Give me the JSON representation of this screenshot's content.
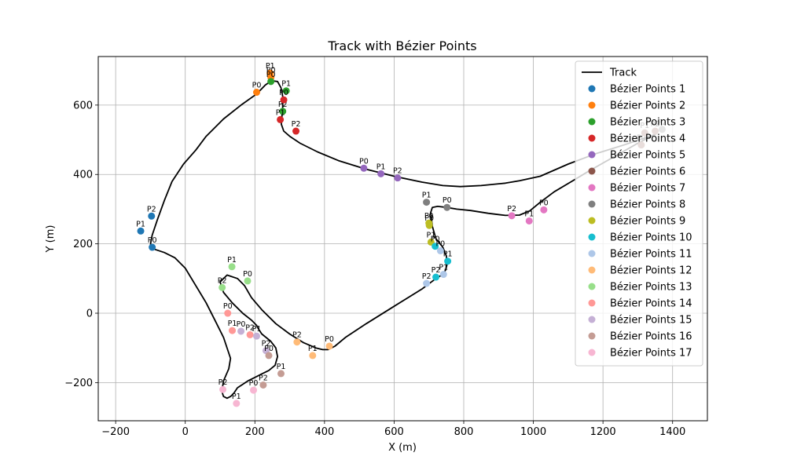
{
  "chart_data": {
    "type": "scatter",
    "title": "Track with Bézier Points",
    "xlabel": "X (m)",
    "ylabel": "Y (m)",
    "xlim": [
      -250,
      1500
    ],
    "ylim": [
      -310,
      740
    ],
    "xticks": [
      -200,
      0,
      200,
      400,
      600,
      800,
      1000,
      1200,
      1400
    ],
    "yticks": [
      -200,
      0,
      200,
      400,
      600
    ],
    "grid": true,
    "legend_position": "top-right",
    "track": {
      "name": "Track",
      "color": "#000000",
      "x": [
        -95,
        -80,
        -60,
        -38,
        -5,
        30,
        60,
        110,
        160,
        205,
        230,
        248,
        265,
        275,
        280,
        280,
        278,
        276,
        283,
        300,
        330,
        380,
        440,
        520,
        600,
        680,
        740,
        790,
        850,
        920,
        960,
        1020,
        1100,
        1180,
        1260,
        1310,
        1340,
        1350,
        1340,
        1300,
        1230,
        1160,
        1110,
        1060,
        1020,
        990,
        960,
        920,
        870,
        820,
        780,
        750,
        725,
        710,
        705,
        710,
        720,
        740,
        750,
        752,
        748,
        740,
        720,
        680,
        600,
        520,
        460,
        430,
        410,
        395,
        375,
        340,
        300,
        260,
        220,
        190,
        170,
        150,
        120,
        100,
        110,
        135,
        165,
        190,
        205,
        210,
        220,
        245,
        260,
        265,
        258,
        240,
        220,
        200,
        180,
        165,
        150,
        140,
        130,
        120,
        110,
        105,
        110,
        125,
        130,
        110,
        85,
        60,
        30,
        0,
        -30,
        -60,
        -90,
        -100,
        -99,
        -95
      ],
      "y": [
        225,
        270,
        325,
        380,
        430,
        470,
        510,
        560,
        600,
        632,
        658,
        670,
        668,
        650,
        625,
        595,
        570,
        545,
        525,
        510,
        490,
        465,
        440,
        415,
        395,
        378,
        368,
        365,
        368,
        375,
        382,
        395,
        430,
        460,
        485,
        502,
        512,
        515,
        510,
        490,
        450,
        410,
        380,
        350,
        320,
        295,
        283,
        282,
        288,
        296,
        300,
        305,
        308,
        305,
        290,
        250,
        215,
        190,
        165,
        140,
        125,
        112,
        100,
        70,
        20,
        -30,
        -70,
        -95,
        -105,
        -105,
        -100,
        -85,
        -60,
        -30,
        10,
        45,
        80,
        100,
        110,
        90,
        60,
        30,
        0,
        -20,
        -35,
        -45,
        -60,
        -80,
        -100,
        -125,
        -150,
        -165,
        -175,
        -185,
        -195,
        -205,
        -215,
        -230,
        -240,
        -245,
        -240,
        -225,
        -195,
        -160,
        -130,
        -70,
        -20,
        30,
        80,
        130,
        160,
        175,
        185,
        195,
        205,
        225
      ]
    },
    "series": [
      {
        "name": "Bézier Points 1",
        "color": "#1f77b4",
        "points": [
          {
            "label": "P0",
            "x": -95,
            "y": 190
          },
          {
            "label": "P1",
            "x": -128,
            "y": 237
          },
          {
            "label": "P2",
            "x": -97,
            "y": 280
          }
        ]
      },
      {
        "name": "Bézier Points 2",
        "color": "#ff7f0e",
        "points": [
          {
            "label": "P0",
            "x": 205,
            "y": 637
          },
          {
            "label": "P1",
            "x": 244,
            "y": 692
          },
          {
            "label": "P0",
            "x": 246,
            "y": 680
          }
        ]
      },
      {
        "name": "Bézier Points 3",
        "color": "#2ca02c",
        "points": [
          {
            "label": "P0",
            "x": 246,
            "y": 668
          },
          {
            "label": "P1",
            "x": 290,
            "y": 641
          },
          {
            "label": "P2",
            "x": 280,
            "y": 582
          }
        ]
      },
      {
        "name": "Bézier Points 4",
        "color": "#d62728",
        "points": [
          {
            "label": "P0",
            "x": 283,
            "y": 615
          },
          {
            "label": "P1",
            "x": 273,
            "y": 558
          },
          {
            "label": "P2",
            "x": 318,
            "y": 525
          }
        ]
      },
      {
        "name": "Bézier Points 5",
        "color": "#9467bd",
        "points": [
          {
            "label": "P0",
            "x": 513,
            "y": 418
          },
          {
            "label": "P1",
            "x": 562,
            "y": 402
          },
          {
            "label": "P2",
            "x": 610,
            "y": 390
          }
        ]
      },
      {
        "name": "Bézier Points 6",
        "color": "#8c564b",
        "points": [
          {
            "label": "P0",
            "x": 1310,
            "y": 485
          },
          {
            "label": "P1",
            "x": 1320,
            "y": 520
          },
          {
            "label": "P2",
            "x": 1350,
            "y": 525
          }
        ]
      },
      {
        "name": "Bézier Points 7",
        "color": "#e377c2",
        "points": [
          {
            "label": "P0",
            "x": 1030,
            "y": 298
          },
          {
            "label": "P1",
            "x": 988,
            "y": 266
          },
          {
            "label": "P2",
            "x": 938,
            "y": 281
          }
        ]
      },
      {
        "name": "Bézier Points 8",
        "color": "#7f7f7f",
        "points": [
          {
            "label": "P0",
            "x": 752,
            "y": 305
          },
          {
            "label": "P1",
            "x": 693,
            "y": 320
          },
          {
            "label": "P2",
            "x": 1370,
            "y": 530
          }
        ]
      },
      {
        "name": "Bézier Points 9",
        "color": "#bcbd22",
        "points": [
          {
            "label": "P0",
            "x": 700,
            "y": 260
          },
          {
            "label": "P0",
            "x": 701,
            "y": 253
          },
          {
            "label": "P1",
            "x": 706,
            "y": 205
          }
        ]
      },
      {
        "name": "Bézier Points 10",
        "color": "#17becf",
        "points": [
          {
            "label": "P0",
            "x": 718,
            "y": 193
          },
          {
            "label": "P1",
            "x": 754,
            "y": 150
          },
          {
            "label": "P2",
            "x": 720,
            "y": 104
          }
        ]
      },
      {
        "name": "Bézier Points 11",
        "color": "#aec7e8",
        "points": [
          {
            "label": "P0",
            "x": 733,
            "y": 180
          },
          {
            "label": "P1",
            "x": 742,
            "y": 112
          },
          {
            "label": "P2",
            "x": 693,
            "y": 86
          }
        ]
      },
      {
        "name": "Bézier Points 12",
        "color": "#ffbb78",
        "points": [
          {
            "label": "P0",
            "x": 414,
            "y": -95
          },
          {
            "label": "P1",
            "x": 366,
            "y": -122
          },
          {
            "label": "P2",
            "x": 321,
            "y": -83
          }
        ]
      },
      {
        "name": "Bézier Points 13",
        "color": "#98df8a",
        "points": [
          {
            "label": "P0",
            "x": 179,
            "y": 93
          },
          {
            "label": "P1",
            "x": 134,
            "y": 134
          },
          {
            "label": "P2",
            "x": 106,
            "y": 74
          }
        ]
      },
      {
        "name": "Bézier Points 14",
        "color": "#ff9896",
        "points": [
          {
            "label": "P0",
            "x": 122,
            "y": 0
          },
          {
            "label": "P1",
            "x": 135,
            "y": -50
          },
          {
            "label": "P2",
            "x": 186,
            "y": -62
          }
        ]
      },
      {
        "name": "Bézier Points 15",
        "color": "#c5b0d5",
        "points": [
          {
            "label": "P0",
            "x": 160,
            "y": -52
          },
          {
            "label": "P1",
            "x": 205,
            "y": -66
          },
          {
            "label": "P2",
            "x": 232,
            "y": -108
          }
        ]
      },
      {
        "name": "Bézier Points 16",
        "color": "#c49c94",
        "points": [
          {
            "label": "P0",
            "x": 240,
            "y": -122
          },
          {
            "label": "P1",
            "x": 275,
            "y": -174
          },
          {
            "label": "P2",
            "x": 224,
            "y": -207
          }
        ]
      },
      {
        "name": "Bézier Points 17",
        "color": "#f7b6d2",
        "points": [
          {
            "label": "P0",
            "x": 196,
            "y": -222
          },
          {
            "label": "P1",
            "x": 147,
            "y": -260
          },
          {
            "label": "P2",
            "x": 108,
            "y": -220
          }
        ]
      }
    ]
  }
}
